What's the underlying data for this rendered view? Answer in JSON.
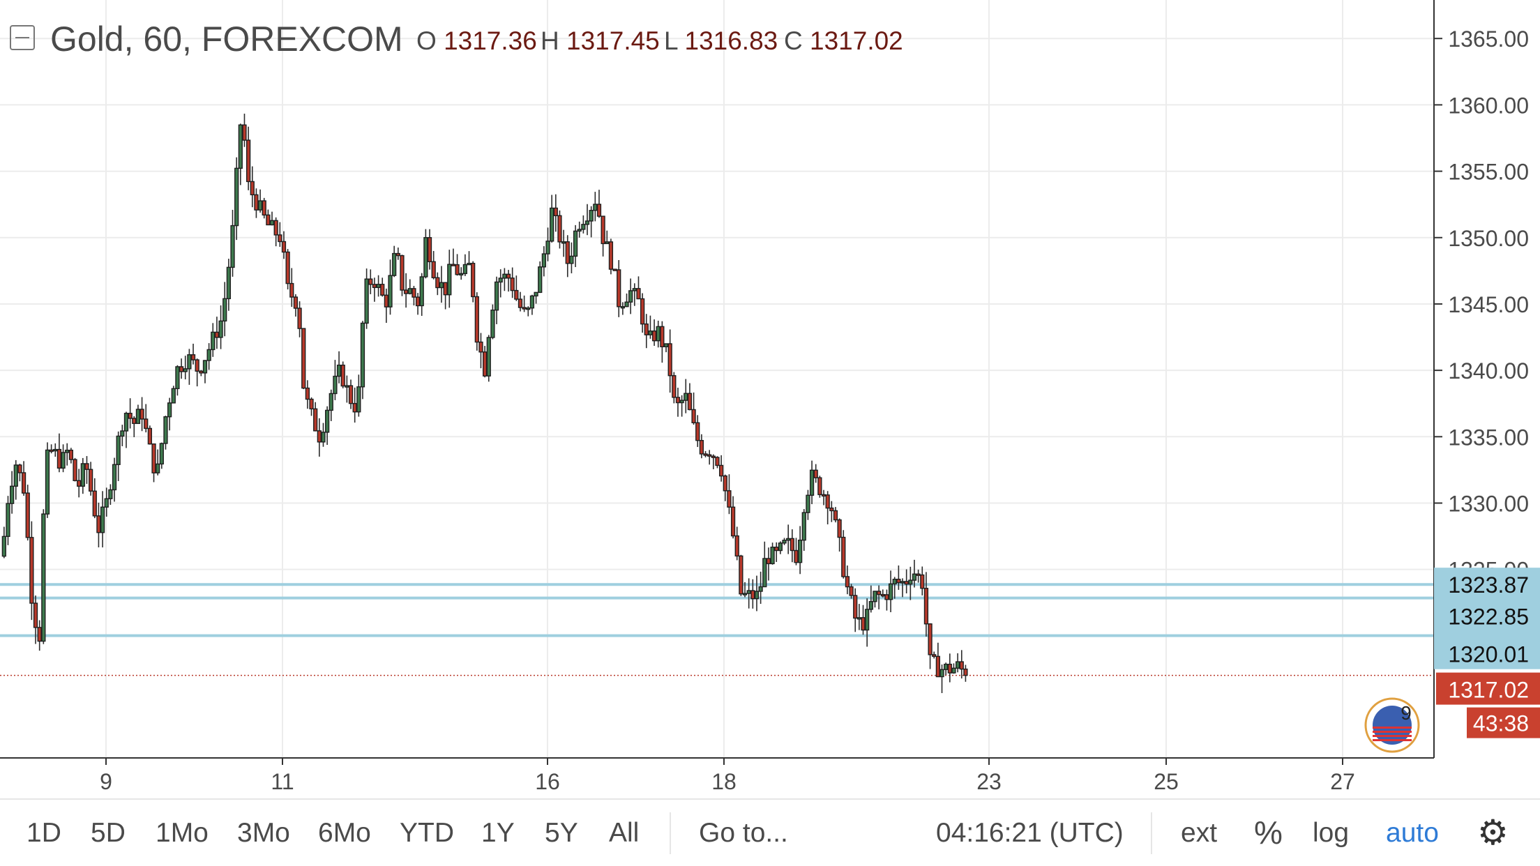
{
  "header": {
    "title": "Gold, 60, FOREXCOM",
    "ohlc": [
      {
        "key": "O",
        "value": "1317.36"
      },
      {
        "key": "H",
        "value": "1317.45"
      },
      {
        "key": "L",
        "value": "1316.83"
      },
      {
        "key": "C",
        "value": "1317.02"
      }
    ]
  },
  "chart_data": {
    "type": "candlestick",
    "symbol": "Gold",
    "interval": "60",
    "source": "FOREXCOM",
    "y_axis": {
      "ticks": [
        "1365.00",
        "1360.00",
        "1355.00",
        "1350.00",
        "1345.00",
        "1340.00",
        "1335.00",
        "1330.00",
        "1325.00"
      ],
      "ylim": [
        1310.8,
        1367.9
      ]
    },
    "x_axis": {
      "ticks": [
        "9",
        "11",
        "16",
        "18",
        "23",
        "25",
        "27"
      ]
    },
    "horizontal_lines": [
      {
        "value": 1323.87,
        "label": "1323.87"
      },
      {
        "value": 1322.85,
        "label": "1322.85"
      },
      {
        "value": 1320.01,
        "label": "1320.01"
      }
    ],
    "last_price": {
      "value": 1317.02,
      "label": "1317.02",
      "countdown": "43:38"
    },
    "line_color": "#9fcfdf",
    "up_color": "#3e7a4e",
    "down_color": "#b8392b",
    "close_path": [
      [
        0,
        1326
      ],
      [
        10,
        1331
      ],
      [
        20,
        1333
      ],
      [
        32,
        1331
      ],
      [
        44,
        1322
      ],
      [
        54,
        1320
      ],
      [
        62,
        1333
      ],
      [
        72,
        1334
      ],
      [
        85,
        1333
      ],
      [
        95,
        1334
      ],
      [
        108,
        1331
      ],
      [
        120,
        1333
      ],
      [
        138,
        1328
      ],
      [
        150,
        1330
      ],
      [
        160,
        1333
      ],
      [
        176,
        1337
      ],
      [
        190,
        1336
      ],
      [
        200,
        1337
      ],
      [
        212,
        1334
      ],
      [
        222,
        1332
      ],
      [
        236,
        1337
      ],
      [
        250,
        1340
      ],
      [
        266,
        1341
      ],
      [
        282,
        1340
      ],
      [
        300,
        1342
      ],
      [
        316,
        1344
      ],
      [
        330,
        1350
      ],
      [
        344,
        1360
      ],
      [
        352,
        1354
      ],
      [
        362,
        1353
      ],
      [
        380,
        1351
      ],
      [
        400,
        1350
      ],
      [
        410,
        1346
      ],
      [
        425,
        1345
      ],
      [
        432,
        1339
      ],
      [
        440,
        1337
      ],
      [
        456,
        1335
      ],
      [
        470,
        1338
      ],
      [
        485,
        1340
      ],
      [
        498,
        1338
      ],
      [
        510,
        1337
      ],
      [
        520,
        1346
      ],
      [
        532,
        1347
      ],
      [
        550,
        1345
      ],
      [
        565,
        1349
      ],
      [
        575,
        1346
      ],
      [
        585,
        1346
      ],
      [
        598,
        1345
      ],
      [
        608,
        1350
      ],
      [
        622,
        1347
      ],
      [
        635,
        1346
      ],
      [
        645,
        1348
      ],
      [
        660,
        1347
      ],
      [
        672,
        1348
      ],
      [
        680,
        1343
      ],
      [
        692,
        1340
      ],
      [
        700,
        1344
      ],
      [
        710,
        1347
      ],
      [
        728,
        1347
      ],
      [
        740,
        1345
      ],
      [
        752,
        1344
      ],
      [
        765,
        1346
      ],
      [
        778,
        1349
      ],
      [
        788,
        1352
      ],
      [
        800,
        1350
      ],
      [
        812,
        1348
      ],
      [
        825,
        1351
      ],
      [
        840,
        1352
      ],
      [
        852,
        1353
      ],
      [
        862,
        1350
      ],
      [
        875,
        1348
      ],
      [
        885,
        1345
      ],
      [
        900,
        1346
      ],
      [
        915,
        1345
      ],
      [
        925,
        1342
      ],
      [
        940,
        1343
      ],
      [
        955,
        1341
      ],
      [
        965,
        1337
      ],
      [
        980,
        1338
      ],
      [
        995,
        1335
      ],
      [
        1005,
        1334
      ],
      [
        1015,
        1334
      ],
      [
        1030,
        1333
      ],
      [
        1040,
        1330
      ],
      [
        1050,
        1327
      ],
      [
        1060,
        1323
      ],
      [
        1070,
        1323
      ],
      [
        1085,
        1323
      ],
      [
        1095,
        1326
      ],
      [
        1110,
        1326
      ],
      [
        1125,
        1327
      ],
      [
        1140,
        1326
      ],
      [
        1150,
        1330
      ],
      [
        1160,
        1332
      ],
      [
        1175,
        1331
      ],
      [
        1188,
        1330
      ],
      [
        1200,
        1327
      ],
      [
        1210,
        1324
      ],
      [
        1225,
        1321
      ],
      [
        1238,
        1321
      ],
      [
        1250,
        1323
      ],
      [
        1265,
        1323
      ],
      [
        1280,
        1324
      ],
      [
        1295,
        1324
      ],
      [
        1305,
        1325
      ],
      [
        1320,
        1324
      ],
      [
        1330,
        1318
      ],
      [
        1345,
        1317.5
      ],
      [
        1360,
        1317.5
      ],
      [
        1372,
        1317.7
      ],
      [
        1382,
        1317.02
      ]
    ]
  },
  "badge": {
    "count": "9"
  },
  "toolbar": {
    "ranges": [
      "1D",
      "5D",
      "1Mo",
      "3Mo",
      "6Mo",
      "YTD",
      "1Y",
      "5Y",
      "All"
    ],
    "goto": "Go to...",
    "clock": "04:16:21 (UTC)",
    "ext": "ext",
    "percent": "%",
    "log": "log",
    "auto": "auto",
    "settings_icon": "gear-icon"
  }
}
